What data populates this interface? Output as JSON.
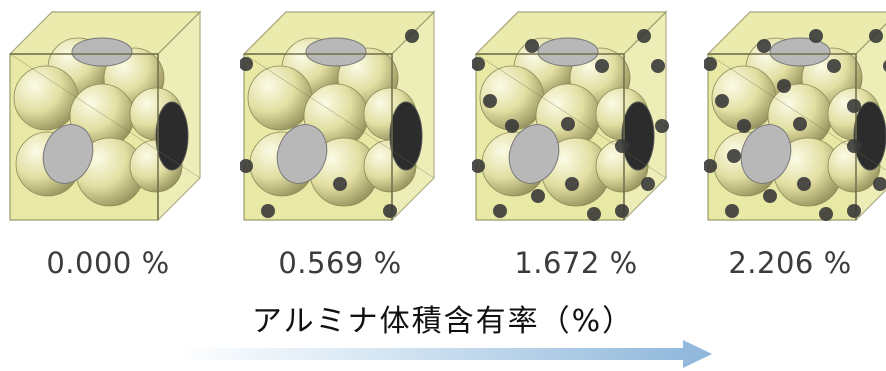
{
  "panels": [
    {
      "label": "0.000 %",
      "alumina_volume_percent": 0.0
    },
    {
      "label": "0.569 %",
      "alumina_volume_percent": 0.569
    },
    {
      "label": "1.672 %",
      "alumina_volume_percent": 1.672
    },
    {
      "label": "2.206 %",
      "alumina_volume_percent": 2.206
    }
  ],
  "axis_title": "アルミナ体積含有率（%）",
  "colors": {
    "cube_face": "#e9e9a6",
    "cube_edge": "#9a9a6a",
    "sphere": "#e4e1a6",
    "cut_face": "#b8b8b8",
    "alumina": "#3a3a3a",
    "arrow": "#a8c8e4"
  }
}
